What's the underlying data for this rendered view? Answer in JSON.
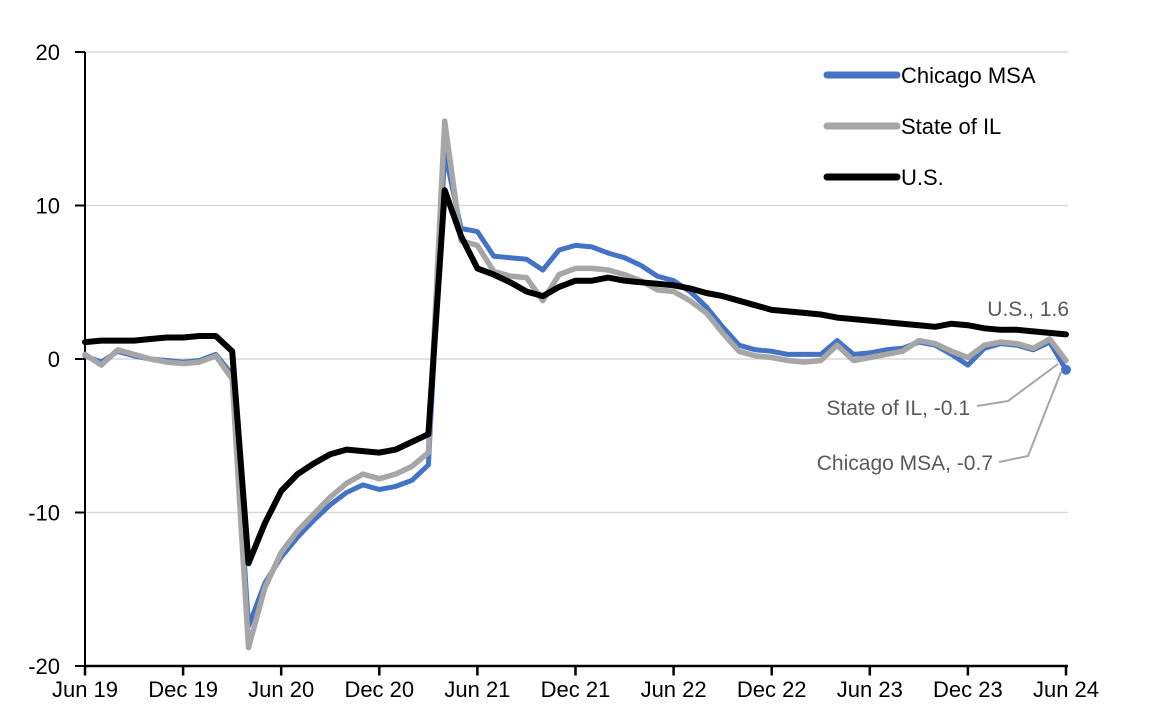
{
  "figure": {
    "background": "#FFFFFF"
  },
  "colors": {
    "chicago_msa": "#4472C4",
    "state_of_il": "#A6A6A6",
    "us": "#000000",
    "gridline": "#D9D9D9",
    "axis": "#000000",
    "tick_label_text": "#000000",
    "legend_text": "#000000",
    "annotation_text": "#595959",
    "leader_line": "#A6A6A6"
  },
  "legend": {
    "position": "top-right",
    "items": [
      {
        "label": "Chicago MSA",
        "color": "#4472C4"
      },
      {
        "label": "State of IL",
        "color": "#A6A6A6"
      },
      {
        "label": "U.S.",
        "color": "#000000"
      }
    ]
  },
  "chart_data": {
    "type": "line",
    "title": "",
    "xlabel": "",
    "ylabel": "",
    "ylim": [
      -20,
      20
    ],
    "y_ticks": [
      20,
      10,
      0,
      -10,
      -20
    ],
    "grid": "horizontal",
    "legend_position": "top-right",
    "x_tick_labels": [
      "Jun 19",
      "Dec 19",
      "Jun 20",
      "Dec 20",
      "Jun 21",
      "Dec 21",
      "Jun 22",
      "Dec 22",
      "Jun 23",
      "Dec 23",
      "Jun 24"
    ],
    "x_tick_interval_months": 6,
    "x": [
      "Jun 19",
      "Jul 19",
      "Aug 19",
      "Sep 19",
      "Oct 19",
      "Nov 19",
      "Dec 19",
      "Jan 20",
      "Feb 20",
      "Mar 20",
      "Apr 20",
      "May 20",
      "Jun 20",
      "Jul 20",
      "Aug 20",
      "Sep 20",
      "Oct 20",
      "Nov 20",
      "Dec 20",
      "Jan 21",
      "Feb 21",
      "Mar 21",
      "Apr 21",
      "May 21",
      "Jun 21",
      "Jul 21",
      "Aug 21",
      "Sep 21",
      "Oct 21",
      "Nov 21",
      "Dec 21",
      "Jan 22",
      "Feb 22",
      "Mar 22",
      "Apr 22",
      "May 22",
      "Jun 22",
      "Jul 22",
      "Aug 22",
      "Sep 22",
      "Oct 22",
      "Nov 22",
      "Dec 22",
      "Jan 23",
      "Feb 23",
      "Mar 23",
      "Apr 23",
      "May 23",
      "Jun 23",
      "Jul 23",
      "Aug 23",
      "Sep 23",
      "Oct 23",
      "Nov 23",
      "Dec 23",
      "Jan 24",
      "Feb 24",
      "Mar 24",
      "Apr 24",
      "May 24",
      "Jun 24"
    ],
    "series": [
      {
        "name": "Chicago MSA",
        "color": "#4472C4",
        "end_marker": true,
        "values": [
          0.2,
          -0.2,
          0.5,
          0.2,
          0.0,
          -0.1,
          -0.2,
          -0.1,
          0.3,
          -1.0,
          -17.4,
          -14.6,
          -12.9,
          -11.6,
          -10.5,
          -9.5,
          -8.7,
          -8.2,
          -8.5,
          -8.3,
          -7.9,
          -6.9,
          13.5,
          8.5,
          8.3,
          6.7,
          6.6,
          6.5,
          5.8,
          7.1,
          7.4,
          7.3,
          6.9,
          6.6,
          6.1,
          5.4,
          5.1,
          4.4,
          3.4,
          2.1,
          0.9,
          0.6,
          0.5,
          0.3,
          0.3,
          0.3,
          1.2,
          0.3,
          0.4,
          0.6,
          0.7,
          1.1,
          0.9,
          0.3,
          -0.4,
          0.7,
          1.0,
          0.9,
          0.6,
          1.1,
          -0.7
        ]
      },
      {
        "name": "State of IL",
        "color": "#A6A6A6",
        "end_marker": false,
        "values": [
          0.3,
          -0.4,
          0.6,
          0.3,
          0.0,
          -0.2,
          -0.3,
          -0.2,
          0.2,
          -1.3,
          -18.8,
          -14.9,
          -12.6,
          -11.2,
          -10.1,
          -9.0,
          -8.1,
          -7.5,
          -7.8,
          -7.5,
          -7.0,
          -6.1,
          15.5,
          7.7,
          7.4,
          5.7,
          5.4,
          5.3,
          3.8,
          5.5,
          5.9,
          5.9,
          5.8,
          5.5,
          5.1,
          4.5,
          4.4,
          3.8,
          3.0,
          1.7,
          0.5,
          0.2,
          0.1,
          -0.1,
          -0.2,
          -0.1,
          0.9,
          -0.1,
          0.1,
          0.3,
          0.5,
          1.2,
          1.0,
          0.5,
          0.1,
          0.9,
          1.1,
          1.0,
          0.7,
          1.3,
          -0.1
        ]
      },
      {
        "name": "U.S.",
        "color": "#000000",
        "end_marker": false,
        "values": [
          1.1,
          1.2,
          1.2,
          1.2,
          1.3,
          1.4,
          1.4,
          1.5,
          1.5,
          0.5,
          -13.3,
          -10.7,
          -8.6,
          -7.5,
          -6.8,
          -6.2,
          -5.9,
          -6.0,
          -6.1,
          -5.9,
          -5.4,
          -4.9,
          11.0,
          8.0,
          5.9,
          5.5,
          5.0,
          4.4,
          4.1,
          4.7,
          5.1,
          5.1,
          5.3,
          5.1,
          5.0,
          4.9,
          4.8,
          4.6,
          4.3,
          4.1,
          3.8,
          3.5,
          3.2,
          3.1,
          3.0,
          2.9,
          2.7,
          2.6,
          2.5,
          2.4,
          2.3,
          2.2,
          2.1,
          2.3,
          2.2,
          2.0,
          1.9,
          1.9,
          1.8,
          1.7,
          1.6
        ]
      }
    ],
    "annotations": [
      {
        "text": "U.S., 1.6",
        "series": "U.S.",
        "value": 1.6,
        "has_leader": false
      },
      {
        "text": "State of IL, -0.1",
        "series": "State of IL",
        "value": -0.1,
        "has_leader": true
      },
      {
        "text": "Chicago MSA, -0.7",
        "series": "Chicago MSA",
        "value": -0.7,
        "has_leader": true
      }
    ]
  }
}
